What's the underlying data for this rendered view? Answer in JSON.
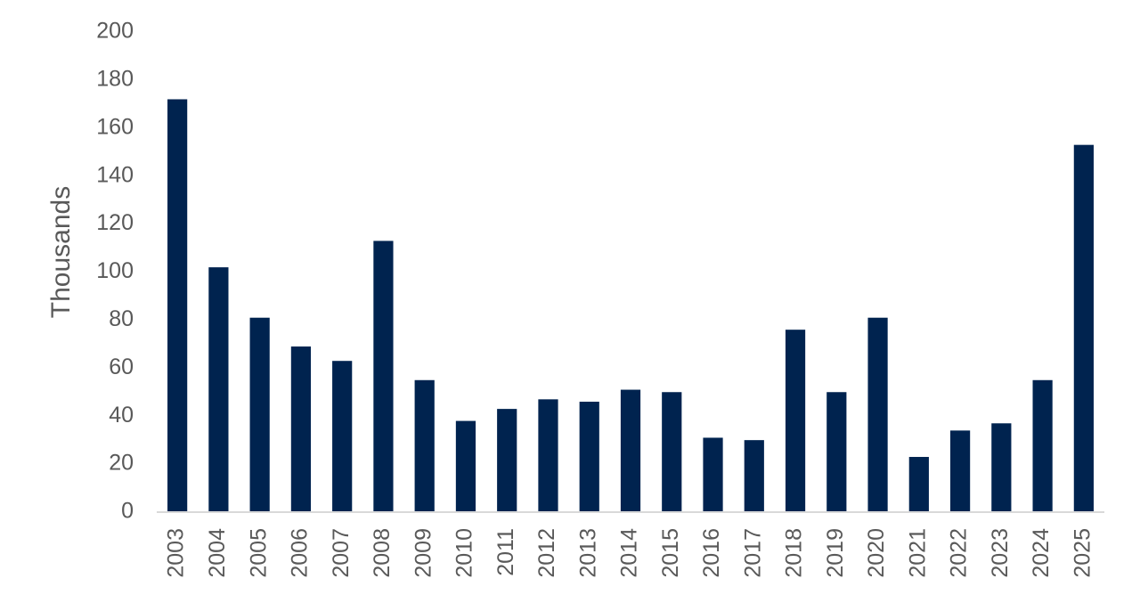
{
  "chart_data": {
    "type": "bar",
    "y_label": "Thousands",
    "categories": [
      "2003",
      "2004",
      "2005",
      "2006",
      "2007",
      "2008",
      "2009",
      "2010",
      "2011",
      "2012",
      "2013",
      "2014",
      "2015",
      "2016",
      "2017",
      "2018",
      "2019",
      "2020",
      "2021",
      "2022",
      "2023",
      "2024",
      "2025"
    ],
    "values": [
      172,
      102,
      81,
      69,
      63,
      113,
      55,
      38,
      43,
      47,
      46,
      51,
      50,
      31,
      30,
      76,
      50,
      81,
      23,
      34,
      37,
      55,
      153
    ],
    "color": "#00234f",
    "ylim": [
      0,
      200
    ],
    "yticks": [
      0,
      20,
      40,
      60,
      80,
      100,
      120,
      140,
      160,
      180,
      200
    ],
    "grid": false
  }
}
